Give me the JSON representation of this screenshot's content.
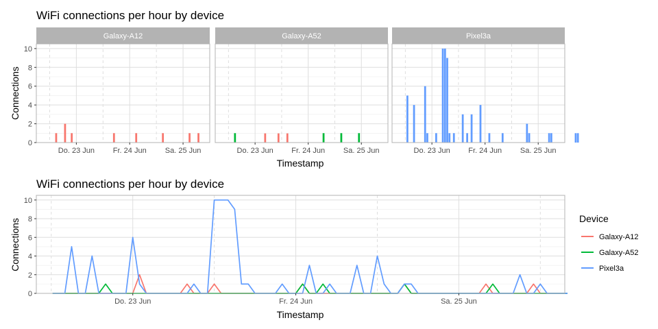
{
  "colors": {
    "Galaxy-A12": "#F8766D",
    "Galaxy-A52": "#00BA38",
    "Pixel3a": "#619CFF",
    "strip": "#b3b3b3",
    "grid_major": "#dedede",
    "grid_minor": "#ececec",
    "frame": "#b3b3b3"
  },
  "legend": {
    "title": "Device",
    "items": [
      "Galaxy-A12",
      "Galaxy-A52",
      "Pixel3a"
    ]
  },
  "chart_data": [
    {
      "type": "bar",
      "title": "WiFi connections per hour by device",
      "xlabel": "Timestamp",
      "ylabel": "Connections",
      "ylim": [
        0,
        10.5
      ],
      "yticks": [
        0,
        2,
        4,
        6,
        8,
        10
      ],
      "xlim_hours_from_22jun0000": [
        6,
        84
      ],
      "xticks": [
        {
          "label": "Do. 23 Jun",
          "hours": 24
        },
        {
          "label": "Fr. 24 Jun",
          "hours": 48
        },
        {
          "label": "Sa. 25 Jun",
          "hours": 72
        }
      ],
      "minor_x_dashed_hours": [
        12,
        36,
        60,
        84
      ],
      "grid": true,
      "panels": [
        {
          "name": "Galaxy-A12",
          "bars": [
            [
              15,
              1
            ],
            [
              19,
              2
            ],
            [
              22,
              1
            ],
            [
              41,
              1
            ],
            [
              51,
              1
            ],
            [
              63,
              1
            ],
            [
              75,
              1
            ],
            [
              79,
              1
            ],
            [
              109,
              1
            ],
            [
              115,
              1
            ],
            [
              119,
              1
            ]
          ]
        },
        {
          "name": "Galaxy-A52",
          "bars": [
            [
              15,
              1
            ],
            [
              55,
              1
            ],
            [
              63,
              1
            ],
            [
              71,
              1
            ]
          ]
        },
        {
          "name": "Pixel3a",
          "bars": [
            [
              13,
              5
            ],
            [
              16,
              4
            ],
            [
              21,
              6
            ],
            [
              22,
              1
            ],
            [
              26,
              1
            ],
            [
              29,
              10
            ],
            [
              30,
              10
            ],
            [
              31,
              9
            ],
            [
              32,
              1
            ],
            [
              34,
              1
            ],
            [
              38,
              3
            ],
            [
              40,
              1
            ],
            [
              42,
              3
            ],
            [
              46,
              4
            ],
            [
              50,
              1
            ],
            [
              56,
              1
            ],
            [
              67,
              2
            ],
            [
              68,
              1
            ],
            [
              77,
              1
            ],
            [
              78,
              1
            ],
            [
              89,
              1
            ],
            [
              90,
              1
            ]
          ]
        }
      ]
    },
    {
      "type": "line",
      "title": "WiFi connections per hour by device",
      "xlabel": "Timestamp",
      "ylabel": "Connections",
      "ylim": [
        0,
        10.5
      ],
      "yticks": [
        0,
        2,
        4,
        6,
        8,
        10
      ],
      "xticks": [
        {
          "label": "Do. 23 Jun",
          "hours": 24
        },
        {
          "label": "Fr. 24 Jun",
          "hours": 48
        },
        {
          "label": "Sa. 25 Jun",
          "hours": 72
        }
      ],
      "minor_x_dashed_hours": [
        12,
        36,
        60,
        84
      ],
      "legend_position": "right",
      "grid": true,
      "series": [
        {
          "name": "Galaxy-A12",
          "points": [
            [
              12.2,
              0
            ],
            [
              24,
              0
            ],
            [
              25,
              2
            ],
            [
              26,
              0
            ],
            [
              31,
              0
            ],
            [
              32,
              1
            ],
            [
              33,
              0
            ],
            [
              35,
              0
            ],
            [
              36,
              1
            ],
            [
              37,
              0
            ],
            [
              48,
              0
            ],
            [
              49,
              1
            ],
            [
              50,
              0
            ],
            [
              63,
              0
            ],
            [
              64,
              1
            ],
            [
              65,
              0
            ],
            [
              75,
              0
            ],
            [
              76,
              1
            ],
            [
              77,
              0
            ],
            [
              82,
              0
            ],
            [
              83,
              1
            ],
            [
              84,
              0
            ],
            [
              88,
              0
            ]
          ]
        },
        {
          "name": "Galaxy-A52",
          "points": [
            [
              12.2,
              0
            ],
            [
              19,
              0
            ],
            [
              20,
              1
            ],
            [
              21,
              0
            ],
            [
              48,
              0
            ],
            [
              49,
              1
            ],
            [
              50,
              0
            ],
            [
              51,
              0
            ],
            [
              52,
              1
            ],
            [
              53,
              0
            ],
            [
              63,
              0
            ],
            [
              64,
              1
            ],
            [
              65,
              0
            ],
            [
              76,
              0
            ],
            [
              77,
              1
            ],
            [
              78,
              0
            ],
            [
              88,
              0
            ]
          ]
        },
        {
          "name": "Pixel3a",
          "points": [
            [
              12.2,
              0
            ],
            [
              14,
              0
            ],
            [
              15,
              5
            ],
            [
              16,
              0
            ],
            [
              17,
              0
            ],
            [
              18,
              4
            ],
            [
              19,
              0
            ],
            [
              23,
              0
            ],
            [
              24,
              6
            ],
            [
              25,
              1
            ],
            [
              26,
              0
            ],
            [
              32,
              0
            ],
            [
              33,
              1
            ],
            [
              34,
              0
            ],
            [
              35,
              0
            ],
            [
              36,
              10
            ],
            [
              37,
              10
            ],
            [
              38,
              10
            ],
            [
              39,
              9
            ],
            [
              40,
              1
            ],
            [
              41,
              1
            ],
            [
              42,
              0
            ],
            [
              45,
              0
            ],
            [
              46,
              1
            ],
            [
              47,
              0
            ],
            [
              49,
              0
            ],
            [
              50,
              3
            ],
            [
              51,
              0
            ],
            [
              52,
              0
            ],
            [
              53,
              1
            ],
            [
              54,
              0
            ],
            [
              56,
              0
            ],
            [
              57,
              3
            ],
            [
              58,
              0
            ],
            [
              59,
              0
            ],
            [
              60,
              4
            ],
            [
              61,
              1
            ],
            [
              62,
              0
            ],
            [
              63,
              0
            ],
            [
              64,
              1
            ],
            [
              65,
              1
            ],
            [
              66,
              0
            ],
            [
              80,
              0
            ],
            [
              81,
              2
            ],
            [
              82,
              0
            ],
            [
              83,
              0
            ],
            [
              84,
              1
            ],
            [
              85,
              0
            ],
            [
              88,
              0
            ]
          ]
        }
      ]
    }
  ]
}
